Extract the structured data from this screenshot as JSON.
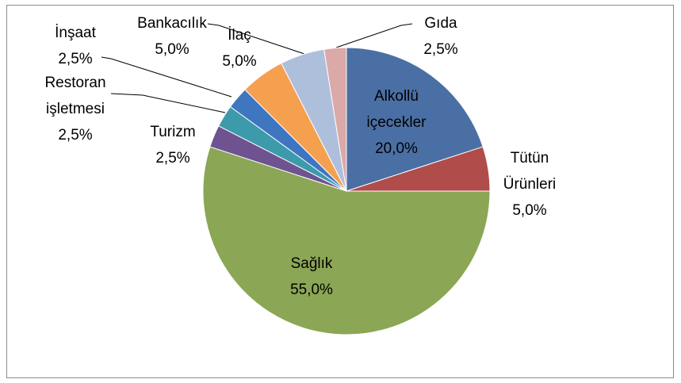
{
  "chart_data": {
    "type": "pie",
    "categories": [
      "Alkollü içecekler",
      "Tütün Ürünleri",
      "Sağlık",
      "Turizm",
      "Restoran işletmesi",
      "İnşaat",
      "İlaç",
      "Bankacılık",
      "Gıda"
    ],
    "values": [
      20,
      5,
      55,
      2.5,
      2.5,
      2.5,
      5,
      5,
      2.5
    ],
    "value_labels": [
      "20,0%",
      "5,0%",
      "55,0%",
      "2,5%",
      "2,5%",
      "2,5%",
      "5,0%",
      "5,0%",
      "2,5%"
    ],
    "colors": [
      "#4a6fa5",
      "#b04c4a",
      "#8ba655",
      "#6e5390",
      "#3d9aaa",
      "#3f76c0",
      "#f5a04f",
      "#aebfdc",
      "#dba9a8"
    ]
  }
}
